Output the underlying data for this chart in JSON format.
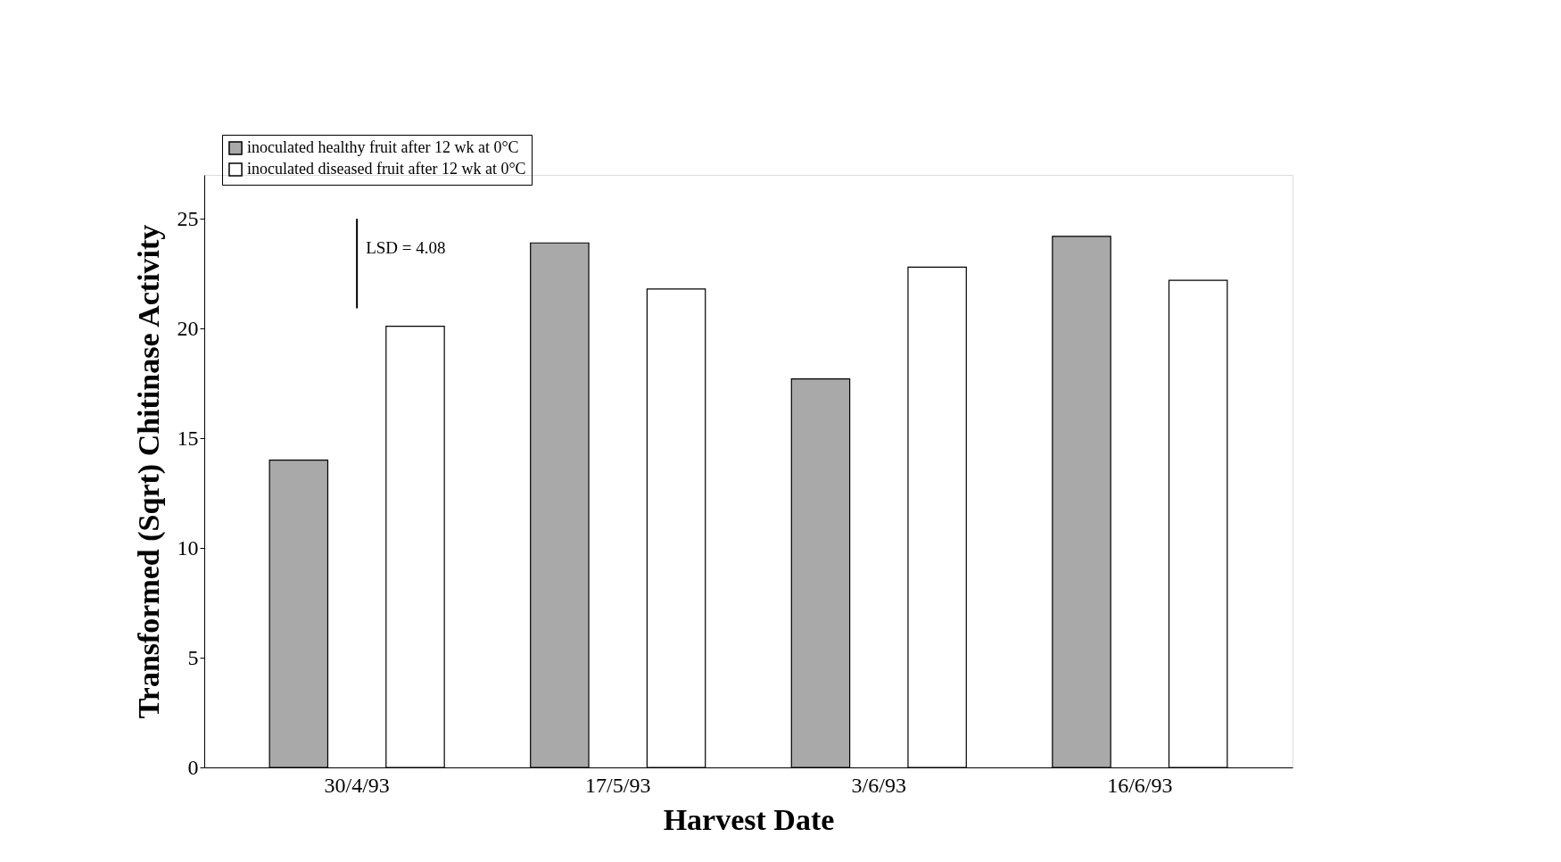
{
  "chart_data": {
    "type": "bar",
    "xlabel": "Harvest Date",
    "ylabel": "Transformed (Sqrt) Chitinase Activity",
    "categories": [
      "30/4/93",
      "17/5/93",
      "3/6/93",
      "16/6/93"
    ],
    "series": [
      {
        "name": "inoculated healthy fruit after 12 wk at 0°C",
        "color": "#a9a9a9",
        "values": [
          14.0,
          23.9,
          17.7,
          24.2
        ]
      },
      {
        "name": "inoculated diseased fruit after 12 wk at 0°C",
        "color": "#ffffff",
        "values": [
          20.1,
          21.8,
          22.8,
          22.2
        ]
      },
      {
        "type": "bar",
        "color": "#000000",
        "x": [
          "30/4/93"
        ],
        "base": [
          20.92
        ],
        "values": [
          4.08
        ]
      }
    ],
    "ylim": [
      0,
      27
    ],
    "yticks": [
      0,
      5,
      10,
      15,
      20,
      25
    ],
    "grid": false,
    "legend": "top left",
    "annotations": [
      "LSD = 4.08"
    ]
  }
}
